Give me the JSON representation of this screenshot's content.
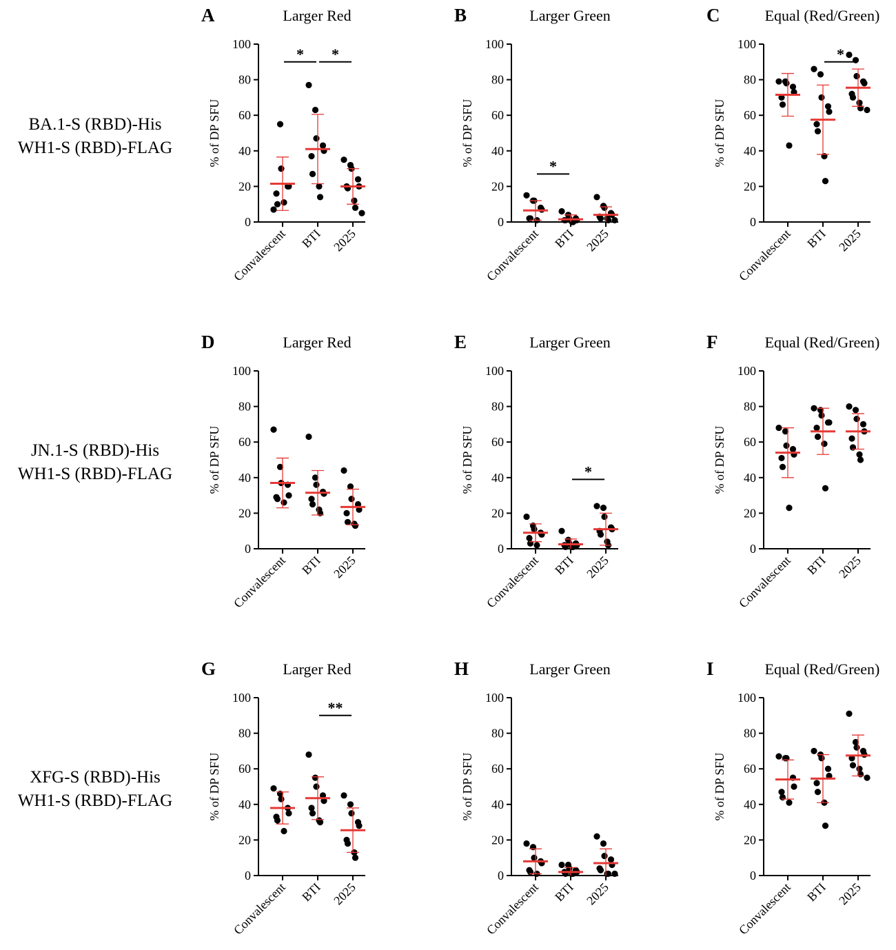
{
  "figure": {
    "row_labels": [
      [
        "BA.1-S (RBD)-His",
        "WH1-S (RBD)-FLAG"
      ],
      [
        "JN.1-S (RBD)-His",
        "WH1-S (RBD)-FLAG"
      ],
      [
        "XFG-S (RBD)-His",
        "WH1-S (RBD)-FLAG"
      ]
    ],
    "colors": {
      "points": "#000000",
      "mean_sd": "#e53935",
      "axes": "#000000"
    }
  },
  "chart_data": [
    {
      "panel": "A",
      "title": "Larger Red",
      "type": "scatter",
      "ylabel": "% of DP SFU",
      "ylim": [
        0,
        100
      ],
      "yticks": [
        0,
        20,
        40,
        60,
        80,
        100
      ],
      "categories": [
        "Convalescent",
        "BTI",
        "2025"
      ],
      "points": [
        [
          7,
          55,
          30,
          20,
          20,
          16,
          10,
          11
        ],
        [
          77,
          63,
          47,
          43,
          40,
          37,
          27,
          20,
          14
        ],
        [
          35,
          32,
          30,
          24,
          20,
          20,
          19,
          12,
          8,
          5
        ]
      ],
      "mean": [
        21.5,
        41,
        20
      ],
      "sd": [
        15,
        19.5,
        10
      ],
      "significance": [
        {
          "from": 0,
          "to": 1,
          "label": "*"
        },
        {
          "from": 1,
          "to": 2,
          "label": "*"
        }
      ]
    },
    {
      "panel": "B",
      "title": "Larger Green",
      "type": "scatter",
      "ylabel": "% of DP SFU",
      "ylim": [
        0,
        100
      ],
      "yticks": [
        0,
        20,
        40,
        60,
        80,
        100
      ],
      "categories": [
        "Convalescent",
        "BTI",
        "2025"
      ],
      "points": [
        [
          15,
          12,
          12,
          8,
          7,
          2,
          2,
          1
        ],
        [
          6,
          4,
          2,
          2,
          1,
          1,
          1,
          0,
          0
        ],
        [
          14,
          9,
          8,
          5,
          4,
          3,
          2,
          2,
          1,
          1
        ]
      ],
      "mean": [
        6.5,
        1.5,
        4
      ],
      "sd": [
        5.5,
        2.5,
        4.5
      ],
      "significance": [
        {
          "from": 0,
          "to": 1,
          "label": "*"
        }
      ]
    },
    {
      "panel": "C",
      "title": "Equal (Red/Green)",
      "type": "scatter",
      "ylabel": "% of DP SFU",
      "ylim": [
        0,
        100
      ],
      "yticks": [
        0,
        20,
        40,
        60,
        80,
        100
      ],
      "categories": [
        "Convalescent",
        "BTI",
        "2025"
      ],
      "points": [
        [
          79,
          79,
          78,
          76,
          73,
          70,
          66,
          43
        ],
        [
          86,
          83,
          70,
          65,
          62,
          55,
          51,
          37,
          23
        ],
        [
          94,
          91,
          82,
          79,
          78,
          72,
          70,
          67,
          64,
          63
        ]
      ],
      "mean": [
        71.5,
        57.5,
        75.5
      ],
      "sd": [
        12,
        19.5,
        10.5
      ],
      "significance": [
        {
          "from": 1,
          "to": 2,
          "label": "*"
        }
      ]
    },
    {
      "panel": "D",
      "title": "Larger Red",
      "type": "scatter",
      "ylabel": "% of DP SFU",
      "ylim": [
        0,
        100
      ],
      "yticks": [
        0,
        20,
        40,
        60,
        80,
        100
      ],
      "categories": [
        "Convalescent",
        "BTI",
        "2025"
      ],
      "points": [
        [
          67,
          46,
          37,
          36,
          30,
          29,
          28,
          26
        ],
        [
          63,
          40,
          36,
          32,
          31,
          28,
          25,
          22,
          20
        ],
        [
          44,
          35,
          28,
          25,
          22,
          20,
          15,
          14,
          13
        ]
      ],
      "mean": [
        37,
        31.5,
        23.5
      ],
      "sd": [
        14,
        12.5,
        10
      ],
      "significance": []
    },
    {
      "panel": "E",
      "title": "Larger Green",
      "type": "scatter",
      "ylabel": "% of DP SFU",
      "ylim": [
        0,
        100
      ],
      "yticks": [
        0,
        20,
        40,
        60,
        80,
        100
      ],
      "categories": [
        "Convalescent",
        "BTI",
        "2025"
      ],
      "points": [
        [
          18,
          13,
          11,
          9,
          8,
          6,
          3,
          2
        ],
        [
          10,
          5,
          3,
          3,
          2,
          2,
          1,
          1,
          1
        ],
        [
          24,
          23,
          18,
          12,
          11,
          10,
          8,
          4,
          2
        ]
      ],
      "mean": [
        9,
        2.5,
        11
      ],
      "sd": [
        5,
        3,
        9
      ],
      "significance": [
        {
          "from": 1,
          "to": 2,
          "label": "*"
        }
      ]
    },
    {
      "panel": "F",
      "title": "Equal (Red/Green)",
      "type": "scatter",
      "ylabel": "% of DP SFU",
      "ylim": [
        0,
        100
      ],
      "yticks": [
        0,
        20,
        40,
        60,
        80,
        100
      ],
      "categories": [
        "Convalescent",
        "BTI",
        "2025"
      ],
      "points": [
        [
          68,
          66,
          58,
          56,
          53,
          51,
          46,
          23
        ],
        [
          79,
          78,
          75,
          71,
          71,
          68,
          63,
          59,
          34
        ],
        [
          80,
          78,
          73,
          70,
          66,
          62,
          57,
          53,
          50
        ]
      ],
      "mean": [
        54,
        66,
        66
      ],
      "sd": [
        14,
        13,
        10
      ],
      "significance": []
    },
    {
      "panel": "G",
      "title": "Larger Red",
      "type": "scatter",
      "ylabel": "% of DP SFU",
      "ylim": [
        0,
        100
      ],
      "yticks": [
        0,
        20,
        40,
        60,
        80,
        100
      ],
      "categories": [
        "Convalescent",
        "BTI",
        "2025"
      ],
      "points": [
        [
          49,
          46,
          43,
          38,
          35,
          33,
          31,
          25
        ],
        [
          68,
          55,
          50,
          45,
          42,
          38,
          35,
          31,
          30
        ],
        [
          45,
          40,
          35,
          30,
          28,
          20,
          18,
          13,
          10
        ]
      ],
      "mean": [
        38,
        43.5,
        25.5
      ],
      "sd": [
        9,
        12,
        12.5
      ],
      "significance": [
        {
          "from": 1,
          "to": 2,
          "label": "**"
        }
      ]
    },
    {
      "panel": "H",
      "title": "Larger Green",
      "type": "scatter",
      "ylabel": "% of DP SFU",
      "ylim": [
        0,
        100
      ],
      "yticks": [
        0,
        20,
        40,
        60,
        80,
        100
      ],
      "categories": [
        "Convalescent",
        "BTI",
        "2025"
      ],
      "points": [
        [
          18,
          16,
          10,
          8,
          7,
          3,
          2,
          1
        ],
        [
          6,
          6,
          4,
          3,
          2,
          2,
          1,
          1,
          1
        ],
        [
          22,
          18,
          11,
          9,
          6,
          4,
          3,
          1,
          1,
          1
        ]
      ],
      "mean": [
        8,
        2,
        7
      ],
      "sd": [
        7,
        2.5,
        8
      ],
      "significance": []
    },
    {
      "panel": "I",
      "title": "Equal (Red/Green)",
      "type": "scatter",
      "ylabel": "% of DP SFU",
      "ylim": [
        0,
        100
      ],
      "yticks": [
        0,
        20,
        40,
        60,
        80,
        100
      ],
      "categories": [
        "Convalescent",
        "BTI",
        "2025"
      ],
      "points": [
        [
          67,
          66,
          66,
          55,
          50,
          47,
          44,
          41
        ],
        [
          70,
          68,
          66,
          60,
          56,
          52,
          47,
          41,
          28
        ],
        [
          91,
          75,
          72,
          70,
          68,
          66,
          62,
          60,
          57,
          55
        ]
      ],
      "mean": [
        54,
        54.5,
        67.5
      ],
      "sd": [
        11,
        13.5,
        11.5
      ],
      "significance": []
    }
  ]
}
